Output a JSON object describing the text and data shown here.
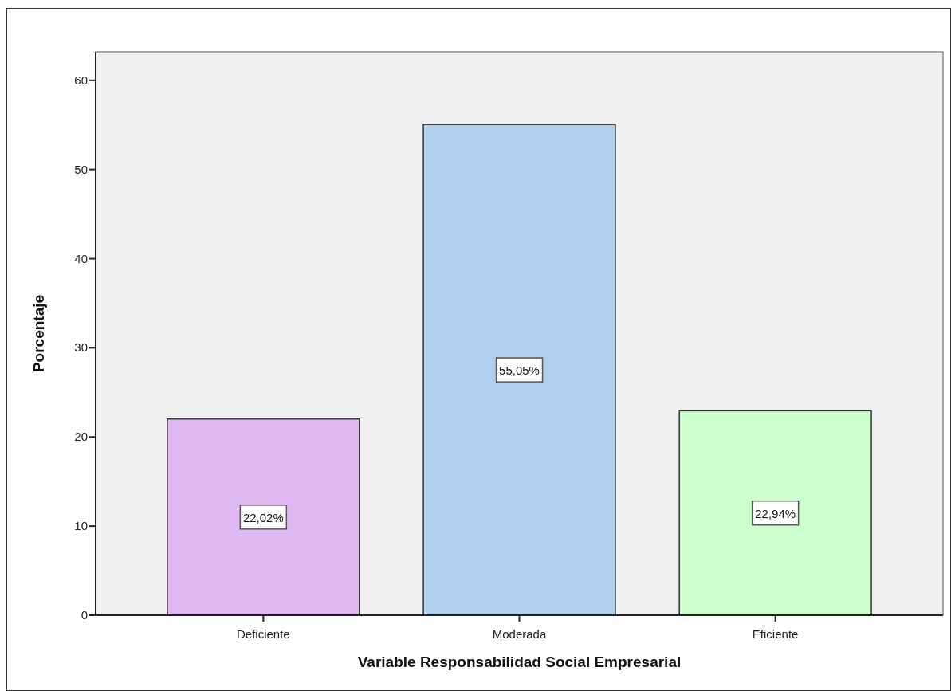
{
  "chart_data": {
    "type": "bar",
    "xlabel": "Variable Responsabilidad Social Empresarial",
    "ylabel": "Porcentaje",
    "categories": [
      "Deficiente",
      "Moderada",
      "Eficiente"
    ],
    "values": [
      22.02,
      55.05,
      22.94
    ],
    "colors": [
      "#dfb8f2",
      "#aecfed",
      "#ccffcc"
    ],
    "value_labels": [
      "22,02%",
      "55,05%",
      "22,94%"
    ],
    "ylim": [
      0,
      63.2
    ],
    "yticks": [
      0,
      10,
      20,
      30,
      40,
      50,
      60
    ]
  }
}
